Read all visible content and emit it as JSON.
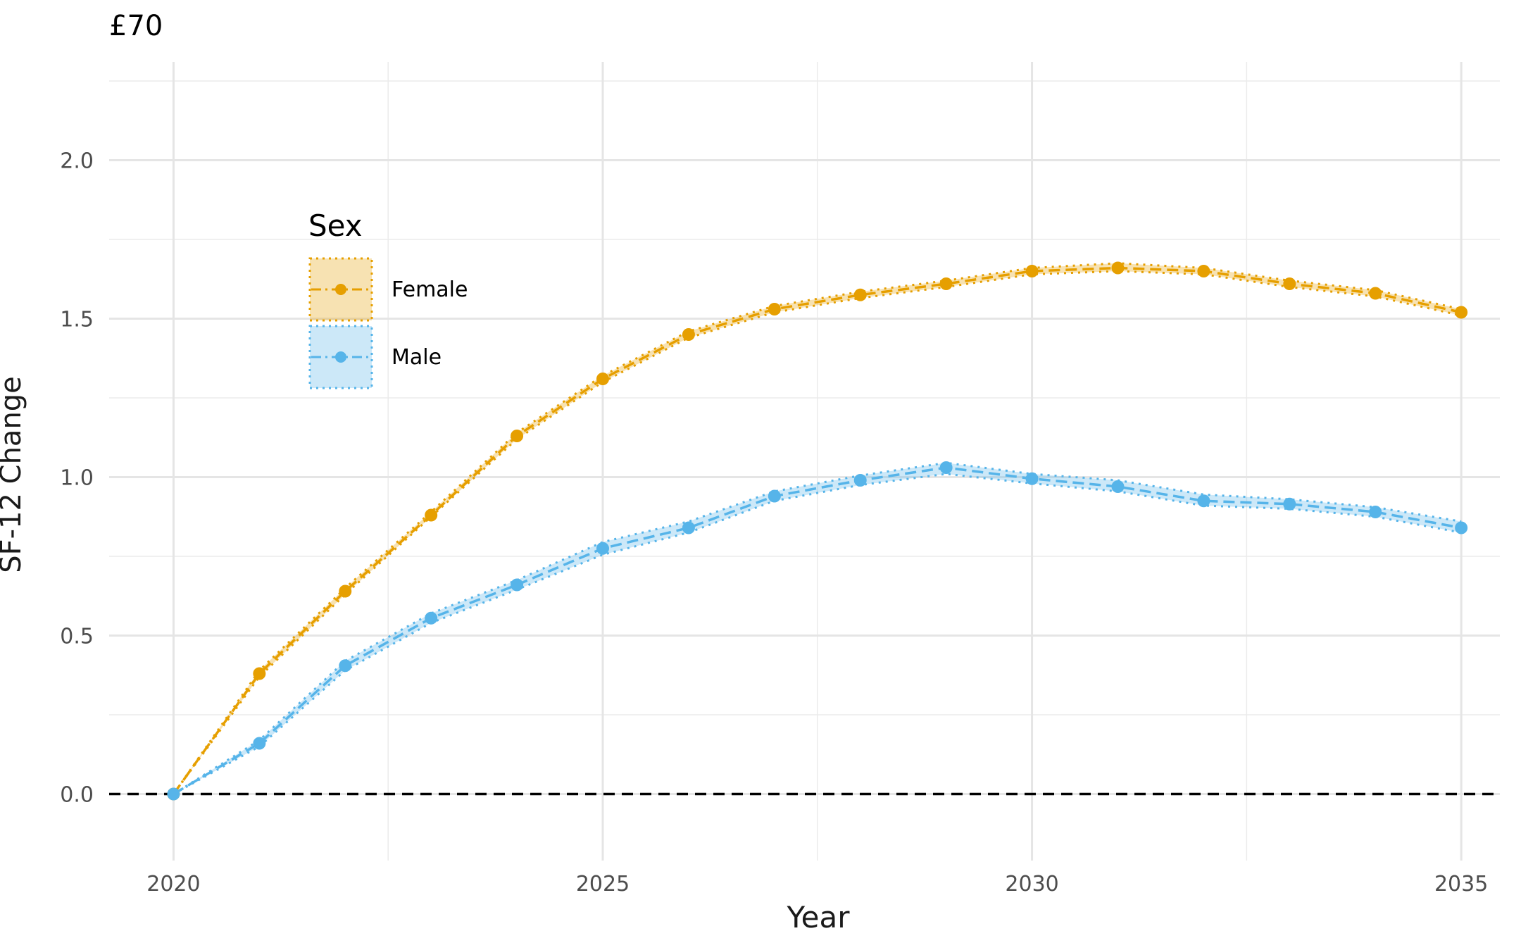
{
  "chart_data": {
    "type": "line",
    "title": "£70",
    "xlabel": "Year",
    "ylabel": "SF-12 Change",
    "x": [
      2020,
      2021,
      2022,
      2023,
      2024,
      2025,
      2026,
      2027,
      2028,
      2029,
      2030,
      2031,
      2032,
      2033,
      2034,
      2035
    ],
    "xticks": [
      "2020",
      "2025",
      "2030",
      "2035"
    ],
    "yticks": [
      "0.0",
      "0.5",
      "1.0",
      "1.5",
      "2.0"
    ],
    "xlim": [
      2019.25,
      2035.45
    ],
    "ylim": [
      -0.21,
      2.31
    ],
    "grid": true,
    "reference_line": 0,
    "legend": {
      "title": "Sex",
      "placement": "upper-left inside plot"
    },
    "series": [
      {
        "name": "Female",
        "color": "#E69F00",
        "values": [
          0.0,
          0.38,
          0.64,
          0.88,
          1.13,
          1.31,
          1.45,
          1.53,
          1.575,
          1.61,
          1.65,
          1.66,
          1.65,
          1.61,
          1.58,
          1.52
        ],
        "lower": [
          0.0,
          0.37,
          0.63,
          0.875,
          1.12,
          1.3,
          1.44,
          1.52,
          1.565,
          1.6,
          1.64,
          1.65,
          1.64,
          1.6,
          1.57,
          1.51
        ],
        "upper": [
          0.0,
          0.39,
          0.65,
          0.89,
          1.14,
          1.32,
          1.46,
          1.54,
          1.585,
          1.62,
          1.66,
          1.675,
          1.66,
          1.62,
          1.59,
          1.53
        ]
      },
      {
        "name": "Male",
        "color": "#56B4E9",
        "values": [
          0.0,
          0.16,
          0.405,
          0.555,
          0.66,
          0.775,
          0.84,
          0.94,
          0.99,
          1.03,
          0.995,
          0.97,
          0.925,
          0.915,
          0.89,
          0.84
        ],
        "lower": [
          0.0,
          0.15,
          0.39,
          0.54,
          0.645,
          0.755,
          0.825,
          0.925,
          0.975,
          1.01,
          0.98,
          0.955,
          0.91,
          0.9,
          0.875,
          0.825
        ],
        "upper": [
          0.0,
          0.17,
          0.42,
          0.57,
          0.675,
          0.795,
          0.86,
          0.955,
          1.005,
          1.045,
          1.01,
          0.99,
          0.945,
          0.93,
          0.905,
          0.86
        ]
      }
    ]
  }
}
